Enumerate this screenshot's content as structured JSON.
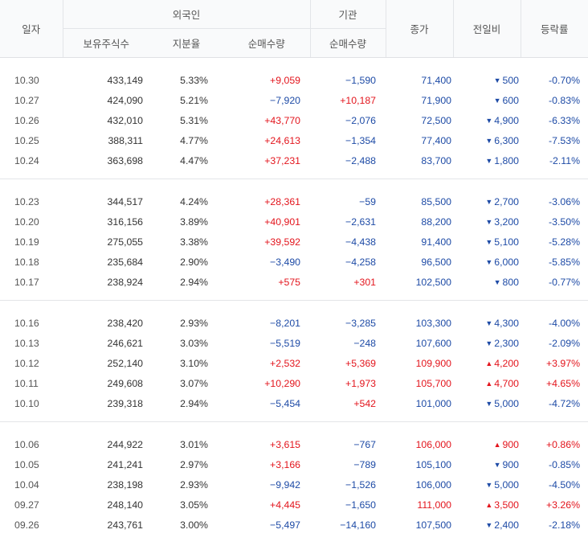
{
  "header": {
    "date": "일자",
    "foreign_group": "외국인",
    "institution_group": "기관",
    "holdings": "보유주식수",
    "ratio": "지분율",
    "foreign_net": "순매수량",
    "institution_net": "순매수량",
    "close": "종가",
    "change": "전일비",
    "rate": "등락률"
  },
  "colors": {
    "up": "#e3151d",
    "down": "#1e4ba6"
  },
  "groups": [
    {
      "rows": [
        {
          "date": "10.30",
          "holdings": "433,149",
          "ratio": "5.33%",
          "foreign_net": "+9,059",
          "institution_net": "−1,590",
          "close": "71,400",
          "direction": "down",
          "change": "500",
          "rate": "-0.70%"
        },
        {
          "date": "10.27",
          "holdings": "424,090",
          "ratio": "5.21%",
          "foreign_net": "−7,920",
          "institution_net": "+10,187",
          "close": "71,900",
          "direction": "down",
          "change": "600",
          "rate": "-0.83%"
        },
        {
          "date": "10.26",
          "holdings": "432,010",
          "ratio": "5.31%",
          "foreign_net": "+43,770",
          "institution_net": "−2,076",
          "close": "72,500",
          "direction": "down",
          "change": "4,900",
          "rate": "-6.33%"
        },
        {
          "date": "10.25",
          "holdings": "388,311",
          "ratio": "4.77%",
          "foreign_net": "+24,613",
          "institution_net": "−1,354",
          "close": "77,400",
          "direction": "down",
          "change": "6,300",
          "rate": "-7.53%"
        },
        {
          "date": "10.24",
          "holdings": "363,698",
          "ratio": "4.47%",
          "foreign_net": "+37,231",
          "institution_net": "−2,488",
          "close": "83,700",
          "direction": "down",
          "change": "1,800",
          "rate": "-2.11%"
        }
      ]
    },
    {
      "rows": [
        {
          "date": "10.23",
          "holdings": "344,517",
          "ratio": "4.24%",
          "foreign_net": "+28,361",
          "institution_net": "−59",
          "close": "85,500",
          "direction": "down",
          "change": "2,700",
          "rate": "-3.06%"
        },
        {
          "date": "10.20",
          "holdings": "316,156",
          "ratio": "3.89%",
          "foreign_net": "+40,901",
          "institution_net": "−2,631",
          "close": "88,200",
          "direction": "down",
          "change": "3,200",
          "rate": "-3.50%"
        },
        {
          "date": "10.19",
          "holdings": "275,055",
          "ratio": "3.38%",
          "foreign_net": "+39,592",
          "institution_net": "−4,438",
          "close": "91,400",
          "direction": "down",
          "change": "5,100",
          "rate": "-5.28%"
        },
        {
          "date": "10.18",
          "holdings": "235,684",
          "ratio": "2.90%",
          "foreign_net": "−3,490",
          "institution_net": "−4,258",
          "close": "96,500",
          "direction": "down",
          "change": "6,000",
          "rate": "-5.85%"
        },
        {
          "date": "10.17",
          "holdings": "238,924",
          "ratio": "2.94%",
          "foreign_net": "+575",
          "institution_net": "+301",
          "close": "102,500",
          "direction": "down",
          "change": "800",
          "rate": "-0.77%"
        }
      ]
    },
    {
      "rows": [
        {
          "date": "10.16",
          "holdings": "238,420",
          "ratio": "2.93%",
          "foreign_net": "−8,201",
          "institution_net": "−3,285",
          "close": "103,300",
          "direction": "down",
          "change": "4,300",
          "rate": "-4.00%"
        },
        {
          "date": "10.13",
          "holdings": "246,621",
          "ratio": "3.03%",
          "foreign_net": "−5,519",
          "institution_net": "−248",
          "close": "107,600",
          "direction": "down",
          "change": "2,300",
          "rate": "-2.09%"
        },
        {
          "date": "10.12",
          "holdings": "252,140",
          "ratio": "3.10%",
          "foreign_net": "+2,532",
          "institution_net": "+5,369",
          "close": "109,900",
          "direction": "up",
          "change": "4,200",
          "rate": "+3.97%"
        },
        {
          "date": "10.11",
          "holdings": "249,608",
          "ratio": "3.07%",
          "foreign_net": "+10,290",
          "institution_net": "+1,973",
          "close": "105,700",
          "direction": "up",
          "change": "4,700",
          "rate": "+4.65%"
        },
        {
          "date": "10.10",
          "holdings": "239,318",
          "ratio": "2.94%",
          "foreign_net": "−5,454",
          "institution_net": "+542",
          "close": "101,000",
          "direction": "down",
          "change": "5,000",
          "rate": "-4.72%"
        }
      ]
    },
    {
      "rows": [
        {
          "date": "10.06",
          "holdings": "244,922",
          "ratio": "3.01%",
          "foreign_net": "+3,615",
          "institution_net": "−767",
          "close": "106,000",
          "direction": "up",
          "change": "900",
          "rate": "+0.86%"
        },
        {
          "date": "10.05",
          "holdings": "241,241",
          "ratio": "2.97%",
          "foreign_net": "+3,166",
          "institution_net": "−789",
          "close": "105,100",
          "direction": "down",
          "change": "900",
          "rate": "-0.85%"
        },
        {
          "date": "10.04",
          "holdings": "238,198",
          "ratio": "2.93%",
          "foreign_net": "−9,942",
          "institution_net": "−1,526",
          "close": "106,000",
          "direction": "down",
          "change": "5,000",
          "rate": "-4.50%"
        },
        {
          "date": "09.27",
          "holdings": "248,140",
          "ratio": "3.05%",
          "foreign_net": "+4,445",
          "institution_net": "−1,650",
          "close": "111,000",
          "direction": "up",
          "change": "3,500",
          "rate": "+3.26%"
        },
        {
          "date": "09.26",
          "holdings": "243,761",
          "ratio": "3.00%",
          "foreign_net": "−5,497",
          "institution_net": "−14,160",
          "close": "107,500",
          "direction": "down",
          "change": "2,400",
          "rate": "-2.18%"
        }
      ]
    }
  ]
}
